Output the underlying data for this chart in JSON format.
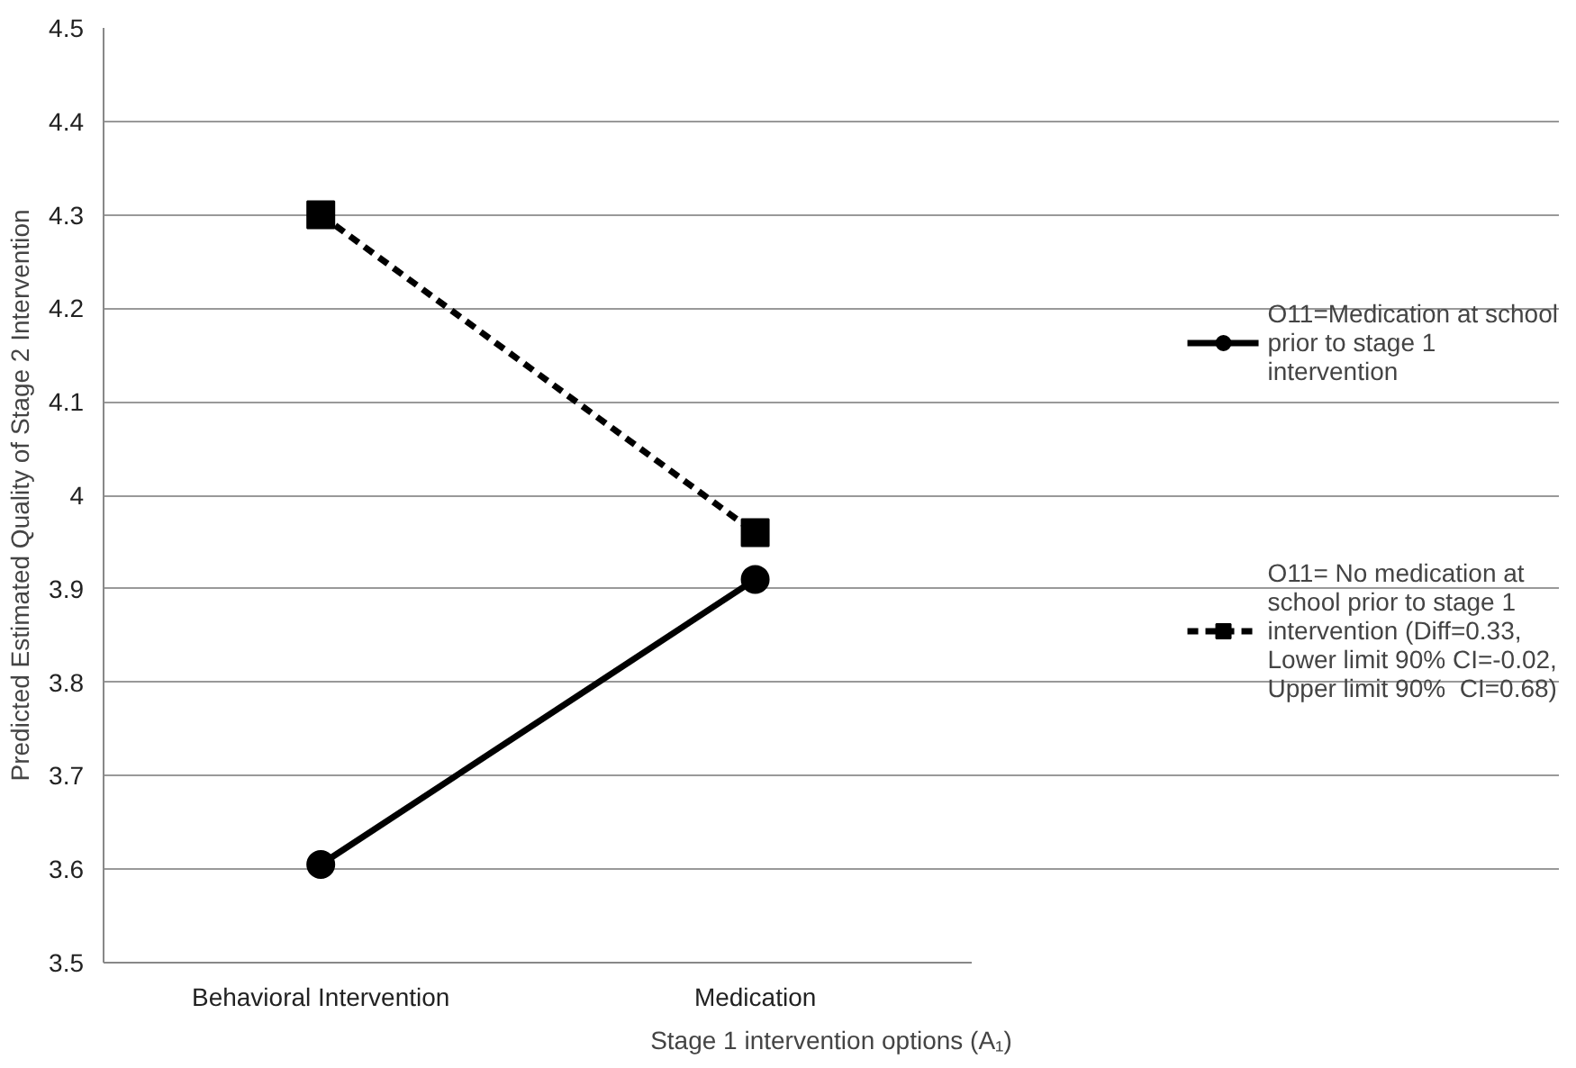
{
  "chart_data": {
    "type": "line",
    "xlabel": "Stage 1 intervention options (A₁)",
    "ylabel": "Predicted Estimated Quality of Stage 2 Intervention",
    "categories": [
      "Behavioral Intervention",
      "Medication"
    ],
    "series": [
      {
        "name": "O11=Medication at school prior to stage 1 intervention",
        "color": "#000000",
        "values": [
          3.605,
          3.91
        ],
        "marker": "circle",
        "line_style": "solid"
      },
      {
        "name": "O11= No medication at school prior to stage 1 intervention (Diff=0.33, Lower limit 90% CI=-0.02, Upper limit 90%  CI=0.68)",
        "color": "#000000",
        "values": [
          4.3,
          3.96
        ],
        "marker": "square",
        "line_style": "dashed"
      }
    ],
    "ylim": [
      3.5,
      4.5
    ],
    "yticks": [
      3.5,
      3.6,
      3.7,
      3.8,
      3.9,
      4,
      4.1,
      4.2,
      4.3,
      4.4,
      4.5
    ],
    "grid": "y",
    "legend": "right"
  }
}
